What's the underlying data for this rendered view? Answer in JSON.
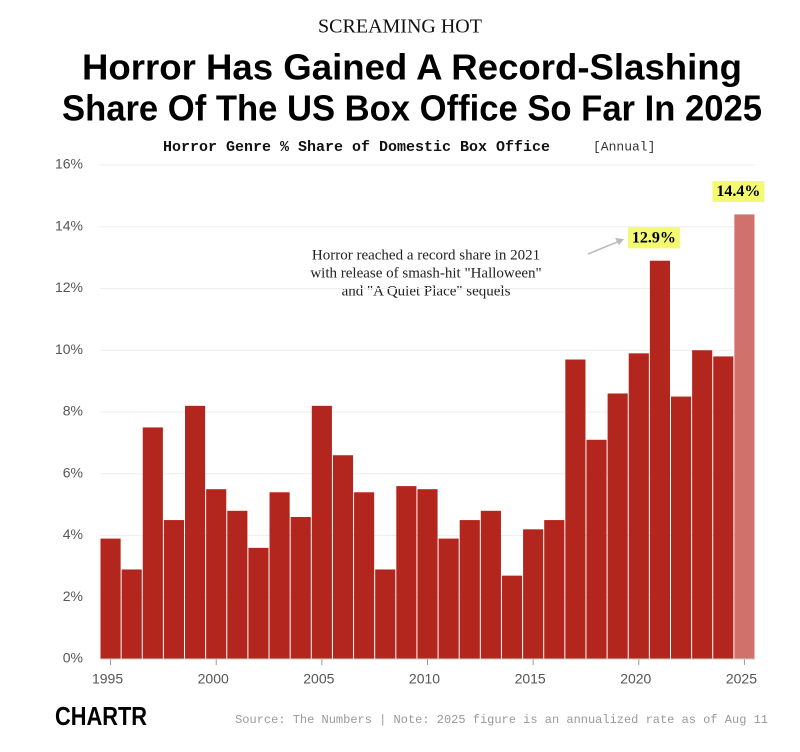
{
  "chart_data": {
    "type": "bar",
    "kicker": "SCREAMING HOT",
    "title": [
      "Horror Has Gained A Record-Slashing",
      "Share Of The US Box Office So Far In 2025"
    ],
    "subtitle": "Horror Genre % Share of Domestic Box Office",
    "subtitle_note": "[Annual]",
    "x": [
      1995,
      1996,
      1997,
      1998,
      1999,
      2000,
      2001,
      2002,
      2003,
      2004,
      2005,
      2006,
      2007,
      2008,
      2009,
      2010,
      2011,
      2012,
      2013,
      2014,
      2015,
      2016,
      2017,
      2018,
      2019,
      2020,
      2021,
      2022,
      2023,
      2024,
      2025
    ],
    "values": [
      3.9,
      2.9,
      7.5,
      4.5,
      8.2,
      5.5,
      4.8,
      3.6,
      5.4,
      4.6,
      8.2,
      6.6,
      5.4,
      2.9,
      5.6,
      5.5,
      3.9,
      4.5,
      4.8,
      2.7,
      4.2,
      4.5,
      9.7,
      7.1,
      8.6,
      9.9,
      12.9,
      8.5,
      10.0,
      9.8,
      14.4
    ],
    "value_labels": [
      null,
      null,
      null,
      null,
      null,
      null,
      null,
      null,
      null,
      null,
      null,
      null,
      null,
      null,
      null,
      null,
      null,
      null,
      null,
      null,
      null,
      null,
      null,
      null,
      null,
      null,
      "12.9%",
      null,
      null,
      null,
      "14.4%"
    ],
    "colors": [
      "#b3261e",
      "#b3261e",
      "#b3261e",
      "#b3261e",
      "#b3261e",
      "#b3261e",
      "#b3261e",
      "#b3261e",
      "#b3261e",
      "#b3261e",
      "#b3261e",
      "#b3261e",
      "#b3261e",
      "#b3261e",
      "#b3261e",
      "#b3261e",
      "#b3261e",
      "#b3261e",
      "#b3261e",
      "#b3261e",
      "#b3261e",
      "#b3261e",
      "#b3261e",
      "#b3261e",
      "#b3261e",
      "#b3261e",
      "#b3261e",
      "#b3261e",
      "#b3261e",
      "#b3261e",
      "#d1716c"
    ],
    "label_highlight": "#f3fa72",
    "xlim": [
      1994.5,
      2025.5
    ],
    "xticks": [
      1995,
      2000,
      2005,
      2010,
      2015,
      2020,
      2025
    ],
    "ylim": [
      0,
      16
    ],
    "yticks": [
      {
        "value": 0,
        "label": "0%"
      },
      {
        "value": 2,
        "label": "2%"
      },
      {
        "value": 4,
        "label": "4%"
      },
      {
        "value": 6,
        "label": "6%"
      },
      {
        "value": 8,
        "label": "8%"
      },
      {
        "value": 10,
        "label": "10%"
      },
      {
        "value": 12,
        "label": "12%"
      },
      {
        "value": 14,
        "label": "14%"
      },
      {
        "value": 16,
        "label": "16%"
      }
    ],
    "grid": true,
    "annotation": [
      "Horror reached a record share in 2021",
      "with release of smash-hit \"Halloween\"",
      "and \"A Quiet Place\" sequels"
    ],
    "logo": "CHARTR",
    "source": "Source: The Numbers | Note: 2025 figure is an annualized rate as of Aug 11"
  }
}
